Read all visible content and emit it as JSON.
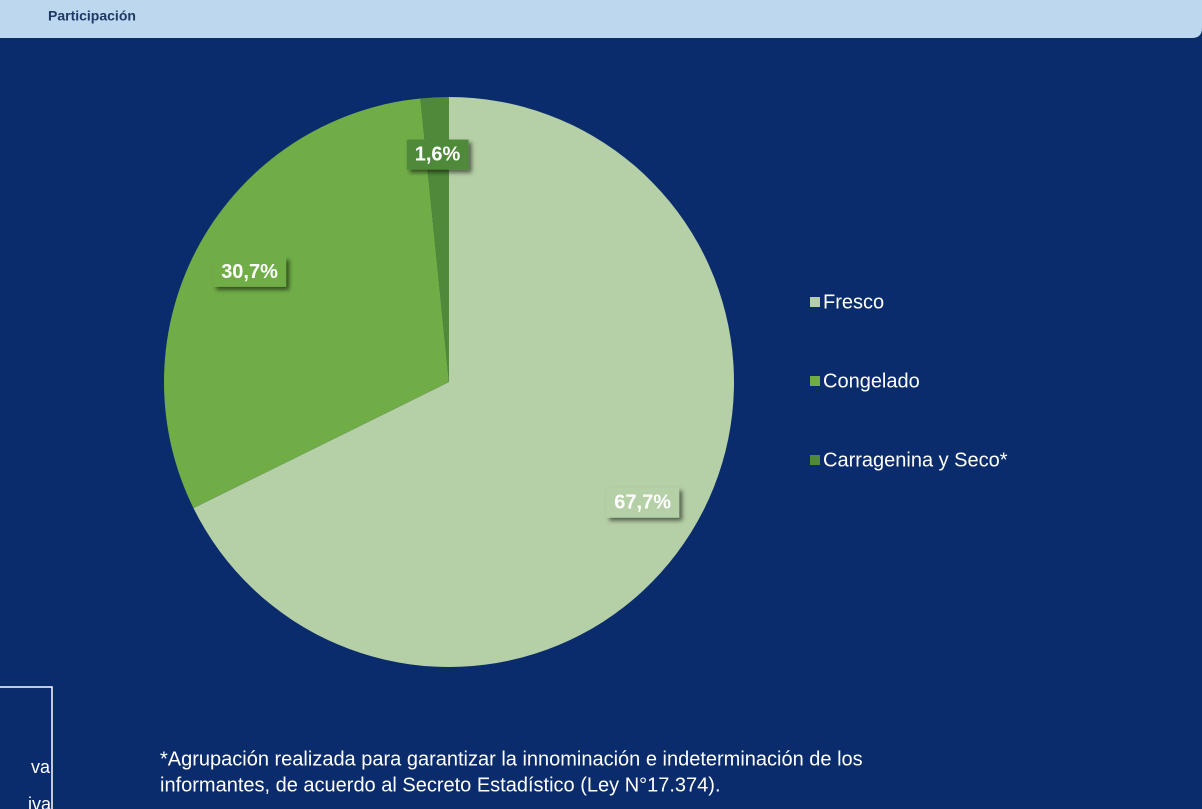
{
  "chart_data": {
    "type": "pie",
    "subtitle": "Participación",
    "categories": [
      "Fresco",
      "Congelado",
      "Carragenina y Seco*"
    ],
    "values": [
      67.7,
      30.7,
      1.6
    ],
    "value_labels": [
      "67,7%",
      "30,7%",
      "1,6%"
    ],
    "colors": [
      "#b5cfa7",
      "#70ad47",
      "#4f8a3a"
    ],
    "legend": "right",
    "footnote": [
      "*Agrupación realizada para garantizar la innominación e indeterminación de los",
      "informantes, de acuerdo al Secreto Estadístico (Ley N°17.374)."
    ]
  },
  "side_panel": {
    "fragments": [
      "va",
      "iva"
    ]
  }
}
